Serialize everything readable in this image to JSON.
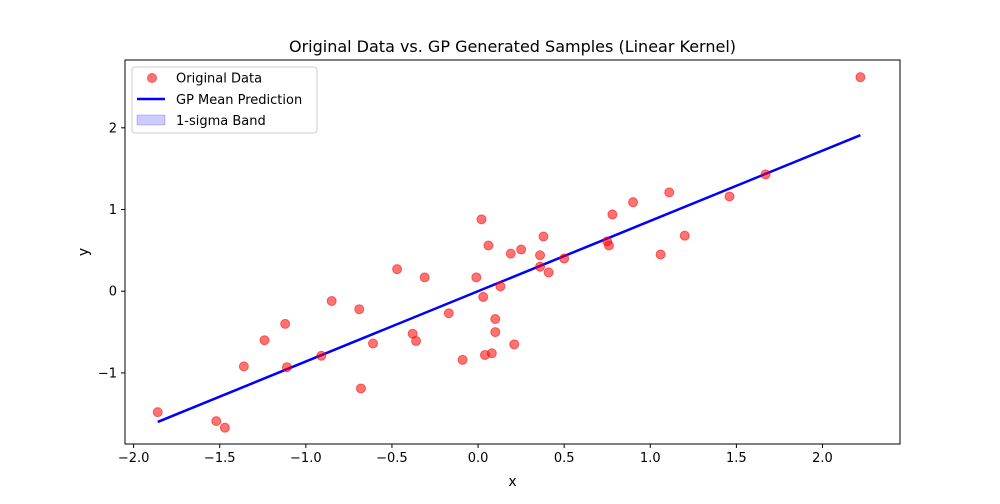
{
  "chart_data": {
    "type": "scatter",
    "title": "Original Data vs. GP Generated Samples (Linear Kernel)",
    "xlabel": "x",
    "ylabel": "y",
    "xlim": [
      -2.05,
      2.45
    ],
    "ylim": [
      -1.87,
      2.83
    ],
    "xticks": [
      -2.0,
      -1.5,
      -1.0,
      -0.5,
      0.0,
      0.5,
      1.0,
      1.5,
      2.0
    ],
    "xtick_labels": [
      "−2.0",
      "−1.5",
      "−1.0",
      "−0.5",
      "0.0",
      "0.5",
      "1.0",
      "1.5",
      "2.0"
    ],
    "yticks": [
      -1,
      0,
      1,
      2
    ],
    "ytick_labels": [
      "−1",
      "0",
      "1",
      "2"
    ],
    "grid": false,
    "legend_position": "top-left",
    "legend": [
      {
        "label": "Original Data",
        "kind": "marker",
        "color": "#ff0000",
        "alpha": 0.55
      },
      {
        "label": "GP Mean Prediction",
        "kind": "line",
        "color": "#0000ff"
      },
      {
        "label": "1-sigma Band",
        "kind": "band",
        "color": "#0000ff",
        "alpha": 0.2
      }
    ],
    "series": [
      {
        "name": "Original Data",
        "kind": "scatter",
        "color": "#ff0000",
        "points": [
          [
            -1.86,
            -1.48
          ],
          [
            -1.52,
            -1.59
          ],
          [
            -1.47,
            -1.67
          ],
          [
            -1.36,
            -0.92
          ],
          [
            -1.24,
            -0.6
          ],
          [
            -1.12,
            -0.4
          ],
          [
            -1.11,
            -0.93
          ],
          [
            -0.91,
            -0.79
          ],
          [
            -0.85,
            -0.12
          ],
          [
            -0.69,
            -0.22
          ],
          [
            -0.68,
            -1.19
          ],
          [
            -0.61,
            -0.64
          ],
          [
            -0.47,
            0.27
          ],
          [
            -0.38,
            -0.52
          ],
          [
            -0.36,
            -0.61
          ],
          [
            -0.31,
            0.17
          ],
          [
            -0.17,
            -0.27
          ],
          [
            -0.09,
            -0.84
          ],
          [
            -0.01,
            0.17
          ],
          [
            0.02,
            0.88
          ],
          [
            0.03,
            -0.07
          ],
          [
            0.04,
            -0.78
          ],
          [
            0.06,
            0.56
          ],
          [
            0.08,
            -0.76
          ],
          [
            0.1,
            -0.34
          ],
          [
            0.1,
            -0.5
          ],
          [
            0.13,
            0.06
          ],
          [
            0.19,
            0.46
          ],
          [
            0.21,
            -0.65
          ],
          [
            0.25,
            0.51
          ],
          [
            0.36,
            0.44
          ],
          [
            0.36,
            0.3
          ],
          [
            0.38,
            0.67
          ],
          [
            0.41,
            0.23
          ],
          [
            0.5,
            0.4
          ],
          [
            0.75,
            0.61
          ],
          [
            0.76,
            0.56
          ],
          [
            0.78,
            0.94
          ],
          [
            0.9,
            1.09
          ],
          [
            1.06,
            0.45
          ],
          [
            1.11,
            1.21
          ],
          [
            1.2,
            0.68
          ],
          [
            1.46,
            1.16
          ],
          [
            1.67,
            1.43
          ],
          [
            2.22,
            2.62
          ]
        ]
      },
      {
        "name": "GP Mean Prediction",
        "kind": "line",
        "color": "#0000ff",
        "points": [
          [
            -1.86,
            -1.6
          ],
          [
            2.22,
            1.91
          ]
        ]
      }
    ]
  }
}
